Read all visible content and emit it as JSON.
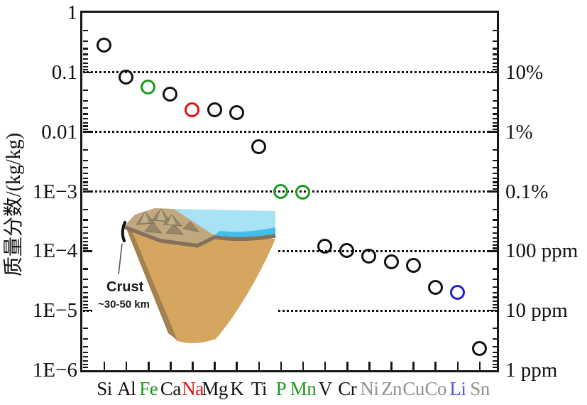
{
  "chart_data": {
    "type": "scatter",
    "title": "",
    "xlabel": "",
    "ylabel": "质量分数/(kg/kg)",
    "y_scale": "log",
    "ylim": [
      1e-06,
      1
    ],
    "grid": "horizontal-dotted",
    "legend": "none",
    "y_axis_left_ticks": [
      "1",
      "0.1",
      "0.01",
      "1E−3",
      "1E−4",
      "1E−5",
      "1E−6"
    ],
    "y_axis_right_ticks": [
      "10%",
      "1%",
      "0.1%",
      "100 ppm",
      "10 ppm",
      "1 ppm"
    ],
    "points": [
      {
        "symbol": "Si",
        "value": 0.28,
        "marker_color": "#111111",
        "label_color": "#111111"
      },
      {
        "symbol": "Al",
        "value": 0.082,
        "marker_color": "#111111",
        "label_color": "#111111"
      },
      {
        "symbol": "Fe",
        "value": 0.056,
        "marker_color": "#1a9a1a",
        "label_color": "#1a9a1a"
      },
      {
        "symbol": "Ca",
        "value": 0.042,
        "marker_color": "#111111",
        "label_color": "#111111"
      },
      {
        "symbol": "Na",
        "value": 0.023,
        "marker_color": "#e11010",
        "label_color": "#e11010"
      },
      {
        "symbol": "Mg",
        "value": 0.023,
        "marker_color": "#111111",
        "label_color": "#111111"
      },
      {
        "symbol": "K",
        "value": 0.021,
        "marker_color": "#111111",
        "label_color": "#111111"
      },
      {
        "symbol": "Ti",
        "value": 0.0056,
        "marker_color": "#111111",
        "label_color": "#111111"
      },
      {
        "symbol": "P",
        "value": 0.001,
        "marker_color": "#1a9a1a",
        "label_color": "#1a9a1a"
      },
      {
        "symbol": "Mn",
        "value": 0.00095,
        "marker_color": "#1a9a1a",
        "label_color": "#1a9a1a"
      },
      {
        "symbol": "V",
        "value": 0.00012,
        "marker_color": "#111111",
        "label_color": "#111111"
      },
      {
        "symbol": "Cr",
        "value": 0.0001,
        "marker_color": "#111111",
        "label_color": "#111111"
      },
      {
        "symbol": "Ni",
        "value": 8e-05,
        "marker_color": "#111111",
        "label_color": "#919191"
      },
      {
        "symbol": "Zn",
        "value": 6.5e-05,
        "marker_color": "#111111",
        "label_color": "#919191"
      },
      {
        "symbol": "Cu",
        "value": 5.6e-05,
        "marker_color": "#111111",
        "label_color": "#919191"
      },
      {
        "symbol": "Co",
        "value": 2.4e-05,
        "marker_color": "#111111",
        "label_color": "#919191"
      },
      {
        "symbol": "Li",
        "value": 2e-05,
        "marker_color": "#2222cc",
        "label_color": "#5555e8"
      },
      {
        "symbol": "Sn",
        "value": 2.3e-06,
        "marker_color": "#111111",
        "label_color": "#919191"
      }
    ],
    "colors": {
      "axis": "#161616",
      "grid": "#111111",
      "marker_black": "#111111",
      "marker_green": "#1a9a1a",
      "marker_red": "#e11010",
      "marker_blue": "#2222cc",
      "label_gray": "#919191",
      "ocean": "#a8e2f5",
      "ocean_deep": "#42bfe8",
      "mantle": "#d5a660",
      "crust_band": "#83715a"
    }
  },
  "inset": {
    "label_title": "Crust",
    "label_sub": "~30-50 km"
  }
}
